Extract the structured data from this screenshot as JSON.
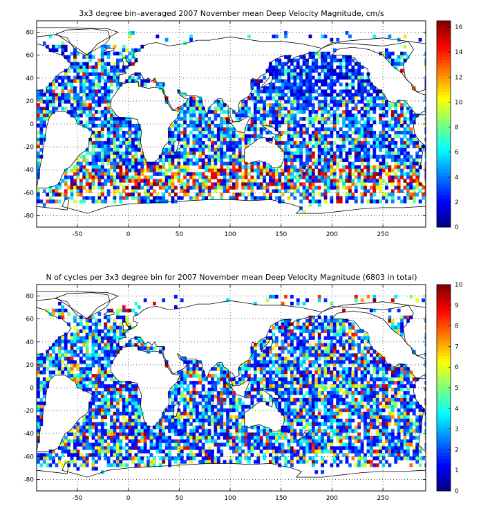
{
  "chart_data": [
    {
      "type": "heatmap",
      "title": "3x3 degree bin–averaged 2007 November mean Deep Velocity Magnitude, cm/s",
      "xlabel": "",
      "ylabel": "",
      "xlim": [
        -90,
        292
      ],
      "ylim": [
        -90,
        90
      ],
      "x_ticks": [
        -50,
        0,
        50,
        100,
        150,
        200,
        250
      ],
      "y_ticks": [
        80,
        60,
        40,
        20,
        0,
        -20,
        -40,
        -60,
        -80
      ],
      "colorbar": {
        "min": 0,
        "max": 16.5,
        "ticks": [
          0,
          2,
          4,
          6,
          8,
          10,
          12,
          14,
          16
        ]
      },
      "grid": true,
      "bin_size_deg": 3,
      "seed": 7,
      "value_mode": "velocity"
    },
    {
      "type": "heatmap",
      "title": "N of cycles per 3x3 degree bin for 2007 November mean Deep Velocity Magnitude (6803 in total)",
      "xlabel": "",
      "ylabel": "",
      "xlim": [
        -90,
        292
      ],
      "ylim": [
        -90,
        90
      ],
      "x_ticks": [
        -50,
        0,
        50,
        100,
        150,
        200,
        250
      ],
      "y_ticks": [
        80,
        60,
        40,
        20,
        0,
        -20,
        -40,
        -60,
        -80
      ],
      "colorbar": {
        "min": 0,
        "max": 10,
        "ticks": [
          0,
          1,
          2,
          3,
          4,
          5,
          6,
          7,
          8,
          9,
          10
        ]
      },
      "grid": true,
      "bin_size_deg": 3,
      "seed": 23,
      "value_mode": "count"
    }
  ]
}
